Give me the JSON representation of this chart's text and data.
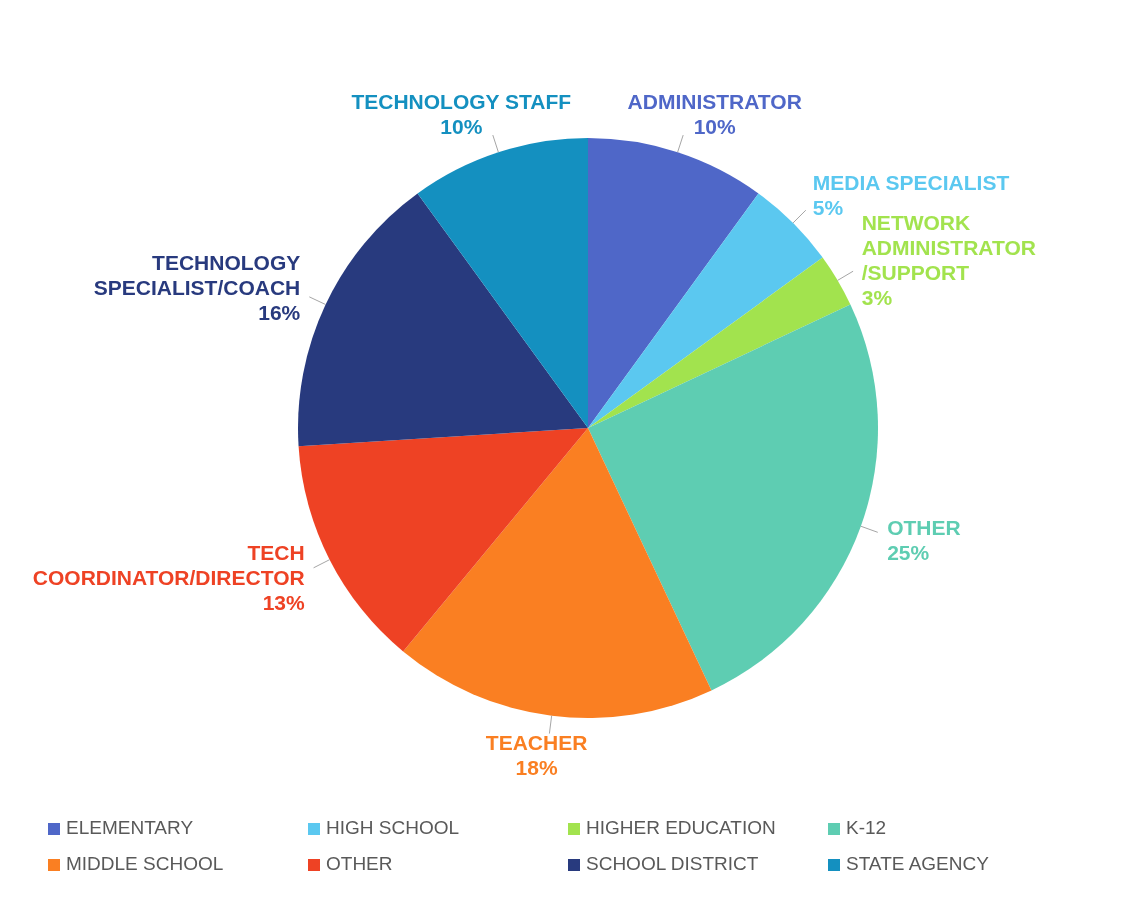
{
  "chart_data": {
    "type": "pie",
    "categories": [
      "ADMINISTRATOR",
      "MEDIA SPECIALIST",
      "NETWORK ADMINISTRATOR/SUPPORT",
      "OTHER",
      "TEACHER",
      "TECH COORDINATOR/DIRECTOR",
      "TECHNOLOGY SPECIALIST/COACH",
      "TECHNOLOGY STAFF"
    ],
    "values": [
      10,
      5,
      3,
      25,
      18,
      13,
      16,
      10
    ],
    "value_labels": [
      "10%",
      "5%",
      "3%",
      "25%",
      "18%",
      "13%",
      "16%",
      "10%"
    ],
    "colors": [
      "#4f67c8",
      "#5bc8f0",
      "#a2e34e",
      "#5ecdb2",
      "#fa7f22",
      "#ee4224",
      "#283a7e",
      "#1490c0"
    ],
    "annotations": [
      "ELEMENTARY",
      "HIGH SCHOOL",
      "HIGHER EDUCATION",
      "K-12",
      "MIDDLE SCHOOL",
      "OTHER",
      "SCHOOL DISTRICT",
      "STATE AGENCY"
    ]
  }
}
